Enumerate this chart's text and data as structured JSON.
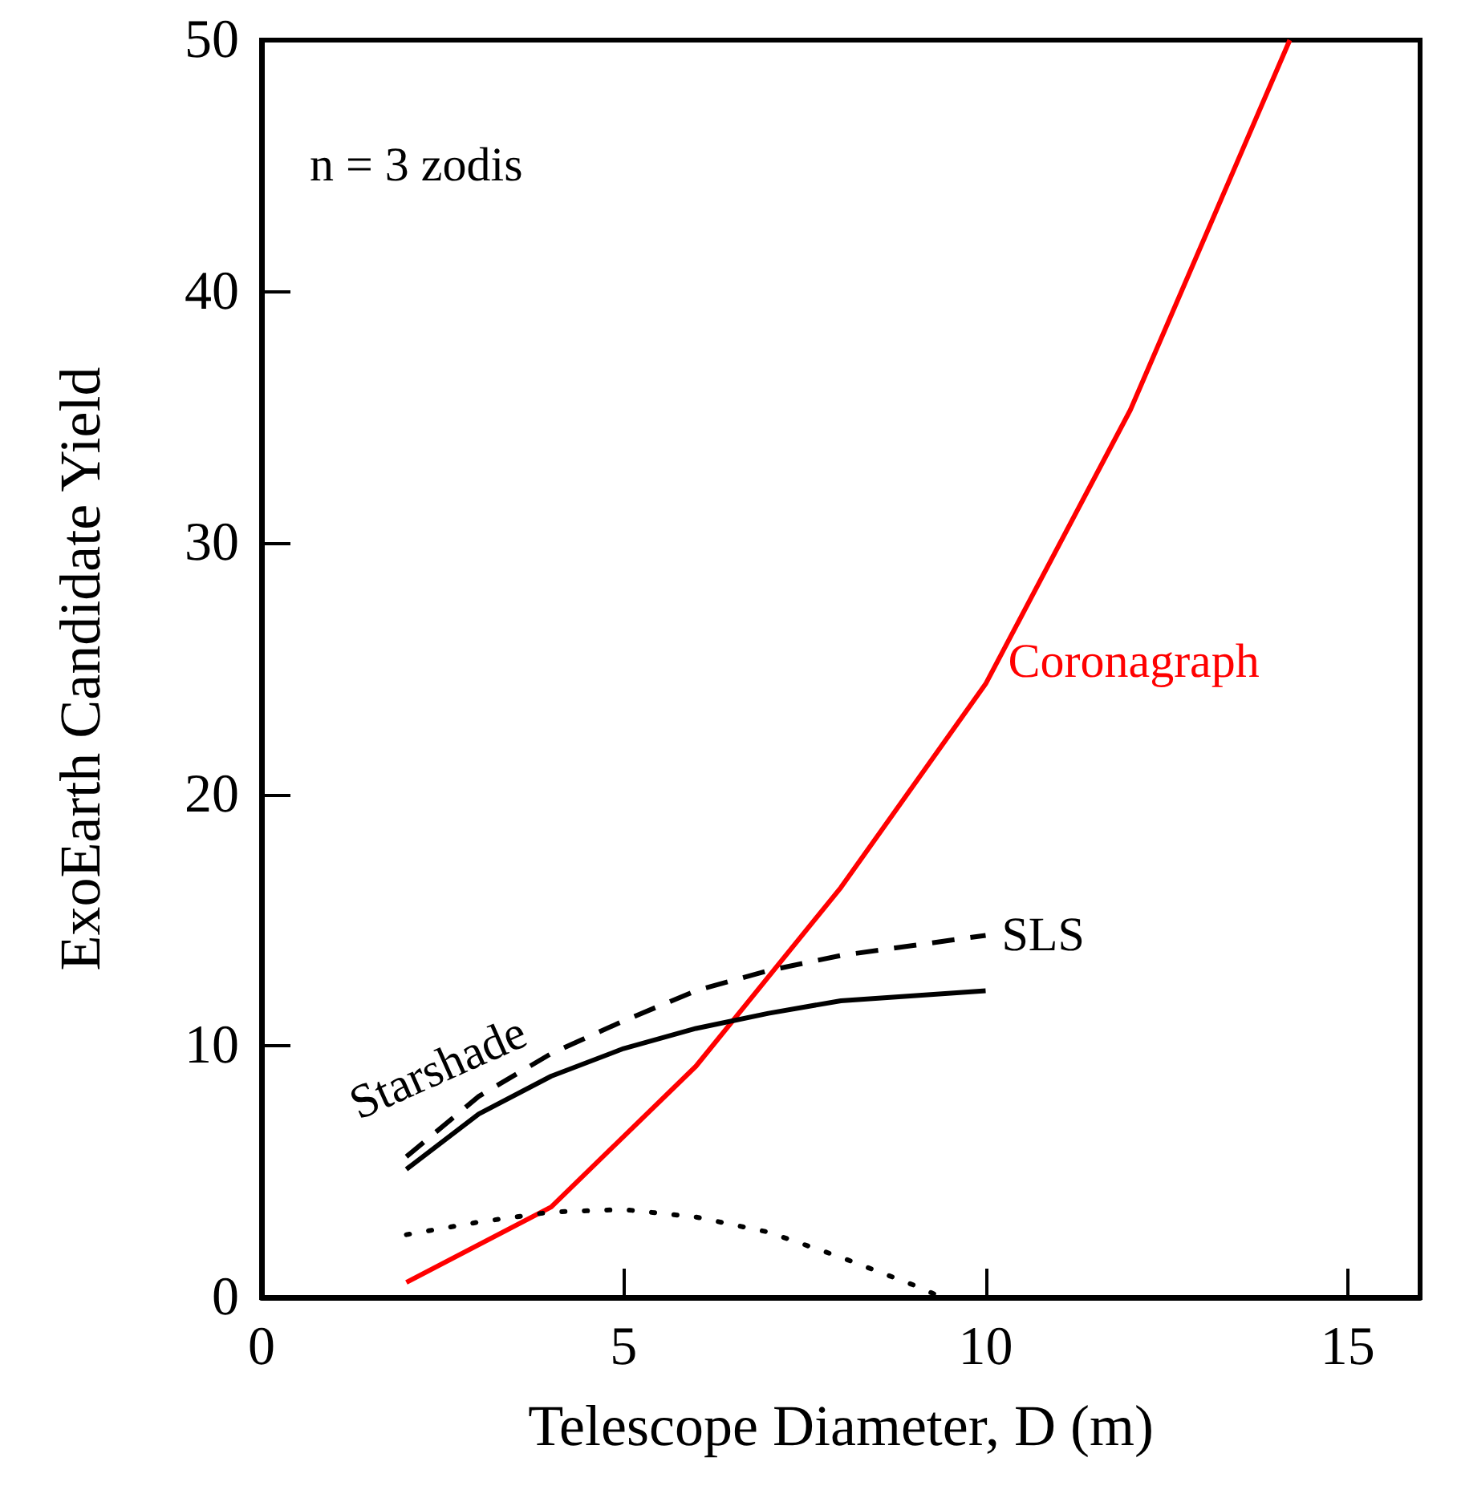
{
  "chart_data": {
    "type": "line",
    "xlabel": "Telescope Diameter, D (m)",
    "ylabel": "ExoEarth Candidate Yield",
    "xlim": [
      0,
      16
    ],
    "xticks": [
      0,
      5,
      10,
      15
    ],
    "ylim": [
      0,
      50
    ],
    "yticks": [
      0,
      10,
      20,
      30,
      40,
      50
    ],
    "grid": false,
    "legend": false,
    "marker": "none",
    "annotations": [
      "n = 3 zodis",
      "Starshade"
    ],
    "series": [
      {
        "name": "Coronagraph",
        "color": "#ff0000",
        "line_style": "solid",
        "x": [
          2,
          4,
          6,
          8,
          10,
          12,
          14.2
        ],
        "values": [
          0.6,
          3.6,
          9.2,
          16.3,
          24.4,
          35.3,
          50
        ]
      },
      {
        "name": "SLS",
        "color": "#000000",
        "line_style": "dashed",
        "x": [
          2,
          3,
          4,
          5,
          6,
          7,
          8,
          9,
          10
        ],
        "values": [
          5.6,
          8,
          9.7,
          11,
          12.2,
          13,
          13.6,
          14,
          14.4
        ]
      },
      {
        "color": "#000000",
        "line_style": "solid",
        "x": [
          2,
          3,
          4,
          5,
          6,
          7,
          8,
          9,
          10
        ],
        "values": [
          5.1,
          7.3,
          8.8,
          9.9,
          10.7,
          11.3,
          11.8,
          12,
          12.2
        ]
      },
      {
        "color": "#000000",
        "line_style": "dotted",
        "x": [
          2,
          3,
          4,
          5,
          6,
          7,
          8,
          9,
          9.4,
          10
        ],
        "values": [
          2.5,
          3,
          3.4,
          3.5,
          3.2,
          2.6,
          1.6,
          0.5,
          0,
          0
        ]
      }
    ]
  }
}
